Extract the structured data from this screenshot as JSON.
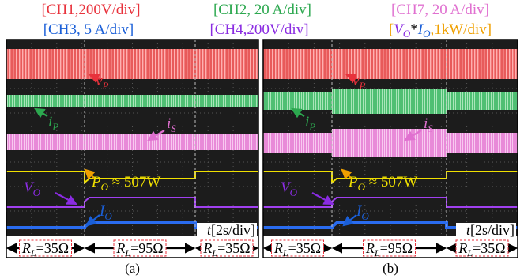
{
  "legend": [
    "[CH1,200V/div]",
    "[CH2, 20 A/div]",
    "[CH7, 20 A/div]",
    "[CH3, 5 A/div]",
    "[CH4,200V/div]"
  ],
  "power_legend": {
    "open": "[",
    "vo": "V",
    "vo_sub": "O",
    "times": "*",
    "io": "I",
    "io_sub": "O",
    "rest": ",1kW/div]"
  },
  "panels": [
    {
      "caption": "(a)",
      "vp": [
        "v",
        "P"
      ],
      "ip": [
        "i",
        "P"
      ],
      "is": [
        "i",
        "S"
      ],
      "po": [
        "P",
        "O",
        " ≈ 507W"
      ],
      "vo": [
        "V",
        "O"
      ],
      "io": [
        "I",
        "O"
      ],
      "time": [
        "t",
        "[2s/div]"
      ],
      "loads": [
        [
          "R",
          "L",
          "=35Ω"
        ],
        [
          "R",
          "L",
          "=95Ω"
        ],
        [
          "R",
          "L",
          "=35Ω"
        ]
      ]
    },
    {
      "caption": "(b)",
      "vp": [
        "v",
        "P"
      ],
      "ip": [
        "i",
        "P"
      ],
      "is": [
        "i",
        "S"
      ],
      "po": [
        "P",
        "O",
        " ≈ 507W"
      ],
      "vo": [
        "V",
        "O"
      ],
      "io": [
        "I",
        "O"
      ],
      "time": [
        "t",
        "[2s/div]"
      ],
      "loads": [
        [
          "R",
          "L",
          "=35Ω"
        ],
        [
          "R",
          "L",
          "=95Ω"
        ],
        [
          "R",
          "L",
          "=35Ω"
        ]
      ]
    }
  ]
}
